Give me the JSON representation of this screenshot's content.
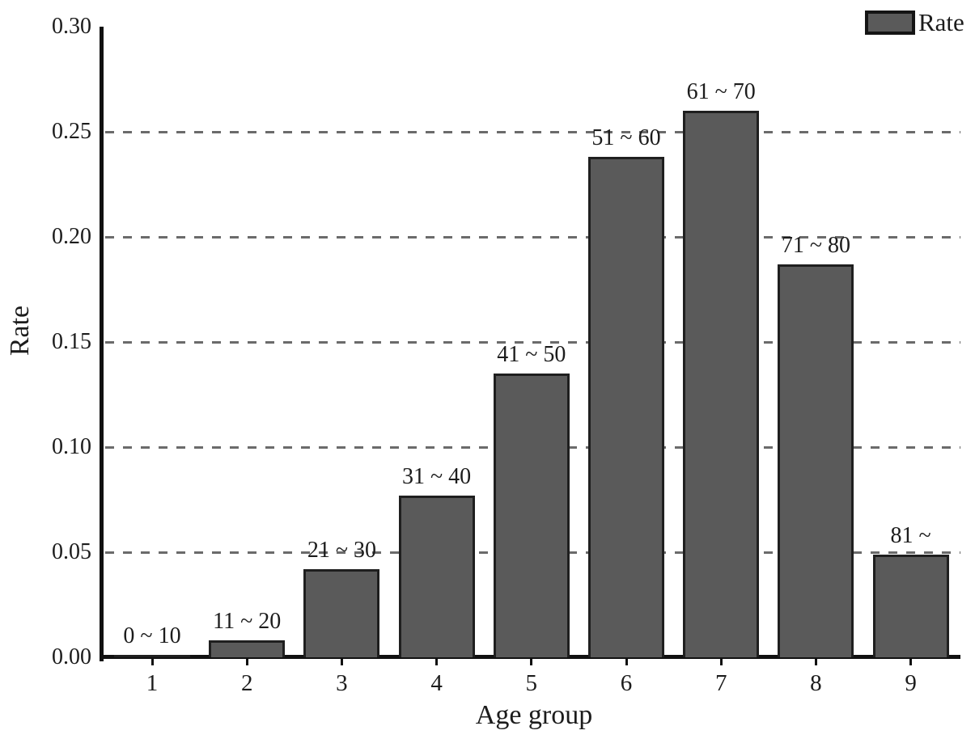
{
  "figure": {
    "y_axis": {
      "title": "Rate"
    },
    "x_axis": {
      "title": "Age group"
    },
    "legend": {
      "label": "Rate"
    }
  },
  "chart_data": {
    "type": "bar",
    "title": "",
    "xlabel": "Age group",
    "ylabel": "Rate",
    "categories": [
      "1",
      "2",
      "3",
      "4",
      "5",
      "6",
      "7",
      "8",
      "9"
    ],
    "values": [
      0.001,
      0.008,
      0.042,
      0.077,
      0.135,
      0.238,
      0.26,
      0.187,
      0.049
    ],
    "bar_labels": [
      "0 ~ 10",
      "11 ~ 20",
      "21 ~ 30",
      "31 ~ 40",
      "41 ~ 50",
      "51 ~ 60",
      "61 ~ 70",
      "71 ~ 80",
      "81 ~"
    ],
    "series": [
      {
        "name": "Rate",
        "values": [
          0.001,
          0.008,
          0.042,
          0.077,
          0.135,
          0.238,
          0.26,
          0.187,
          0.049
        ]
      }
    ],
    "legend_entries": [
      "Rate"
    ],
    "legend_position": "top-right",
    "ylim": [
      0.0,
      0.3
    ],
    "ytick_labels": [
      "0.00",
      "0.05",
      "0.10",
      "0.15",
      "0.20",
      "0.25",
      "0.30"
    ],
    "ytick_step": 0.05,
    "grid": "horizontal dashed lines at 0.05 through 0.25, drawn behind bars",
    "colors": {
      "bar_fill": "#5a5a5a",
      "bar_border": "#1f1f1f",
      "grid": "#6b6b6b",
      "axis": "#111111",
      "text": "#1c1c1c"
    }
  }
}
